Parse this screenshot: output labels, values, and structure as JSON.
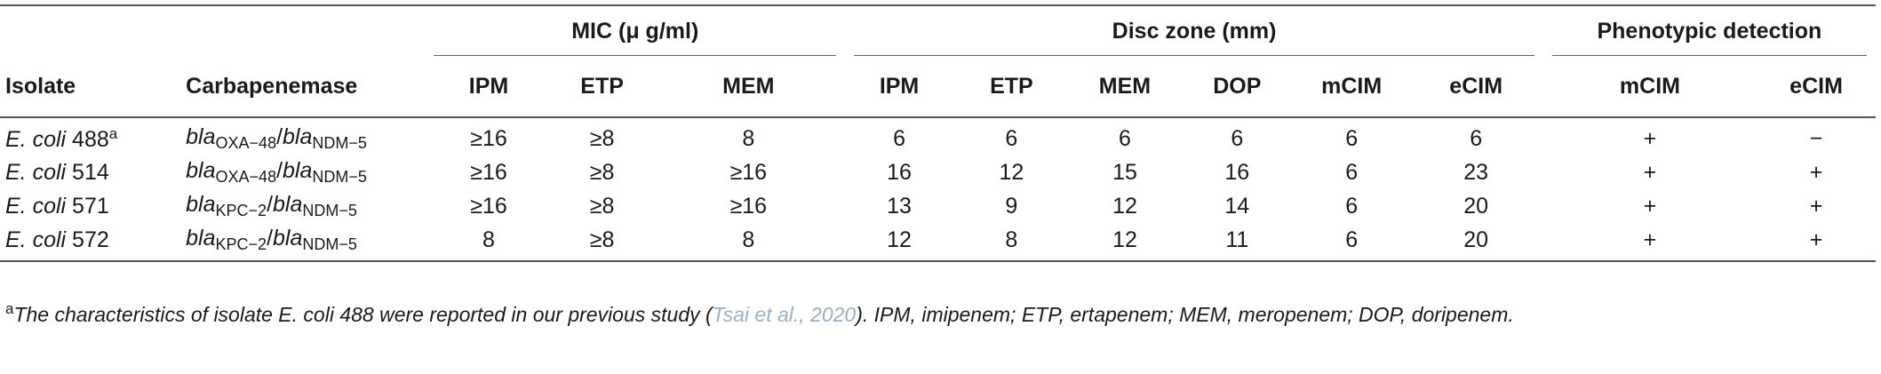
{
  "groups": {
    "mic": "MIC (μ g/ml)",
    "disc": "Disc zone (mm)",
    "pheno": "Phenotypic detection"
  },
  "headers": {
    "isolate": "Isolate",
    "carbapenemase": "Carbapenemase",
    "mic_ipm": "IPM",
    "mic_etp": "ETP",
    "mic_mem": "MEM",
    "disc_ipm": "IPM",
    "disc_etp": "ETP",
    "disc_mem": "MEM",
    "disc_dop": "DOP",
    "disc_mcim": "mCIM",
    "disc_ecim": "eCIM",
    "pheno_mcim": "mCIM",
    "pheno_ecim": "eCIM"
  },
  "gene_prefix": "bla",
  "rows": [
    {
      "species": "E. coli",
      "number": "488",
      "note": "a",
      "gene1_sub": "OXA−48",
      "gene2_sub": "NDM−5",
      "mic_ipm": "≥16",
      "mic_etp": "≥8",
      "mic_mem": "8",
      "disc_ipm": "6",
      "disc_etp": "6",
      "disc_mem": "6",
      "disc_dop": "6",
      "disc_mcim": "6",
      "disc_ecim": "6",
      "pheno_mcim": "+",
      "pheno_ecim": "−"
    },
    {
      "species": "E. coli",
      "number": "514",
      "note": "",
      "gene1_sub": "OXA−48",
      "gene2_sub": "NDM−5",
      "mic_ipm": "≥16",
      "mic_etp": "≥8",
      "mic_mem": "≥16",
      "disc_ipm": "16",
      "disc_etp": "12",
      "disc_mem": "15",
      "disc_dop": "16",
      "disc_mcim": "6",
      "disc_ecim": "23",
      "pheno_mcim": "+",
      "pheno_ecim": "+"
    },
    {
      "species": "E. coli",
      "number": "571",
      "note": "",
      "gene1_sub": "KPC−2",
      "gene2_sub": "NDM−5",
      "mic_ipm": "≥16",
      "mic_etp": "≥8",
      "mic_mem": "≥16",
      "disc_ipm": "13",
      "disc_etp": "9",
      "disc_mem": "12",
      "disc_dop": "14",
      "disc_mcim": "6",
      "disc_ecim": "20",
      "pheno_mcim": "+",
      "pheno_ecim": "+"
    },
    {
      "species": "E. coli",
      "number": "572",
      "note": "",
      "gene1_sub": "KPC−2",
      "gene2_sub": "NDM−5",
      "mic_ipm": "8",
      "mic_etp": "≥8",
      "mic_mem": "8",
      "disc_ipm": "12",
      "disc_etp": "8",
      "disc_mem": "12",
      "disc_dop": "11",
      "disc_mcim": "6",
      "disc_ecim": "20",
      "pheno_mcim": "+",
      "pheno_ecim": "+"
    }
  ],
  "footnote": {
    "mark": "a",
    "text_before": "The characteristics of isolate E. coli 488 were reported in our previous study (",
    "citation": "Tsai et al., 2020",
    "text_after": "). IPM, imipenem; ETP, ertapenem; MEM, meropenem; DOP, doripenem."
  }
}
